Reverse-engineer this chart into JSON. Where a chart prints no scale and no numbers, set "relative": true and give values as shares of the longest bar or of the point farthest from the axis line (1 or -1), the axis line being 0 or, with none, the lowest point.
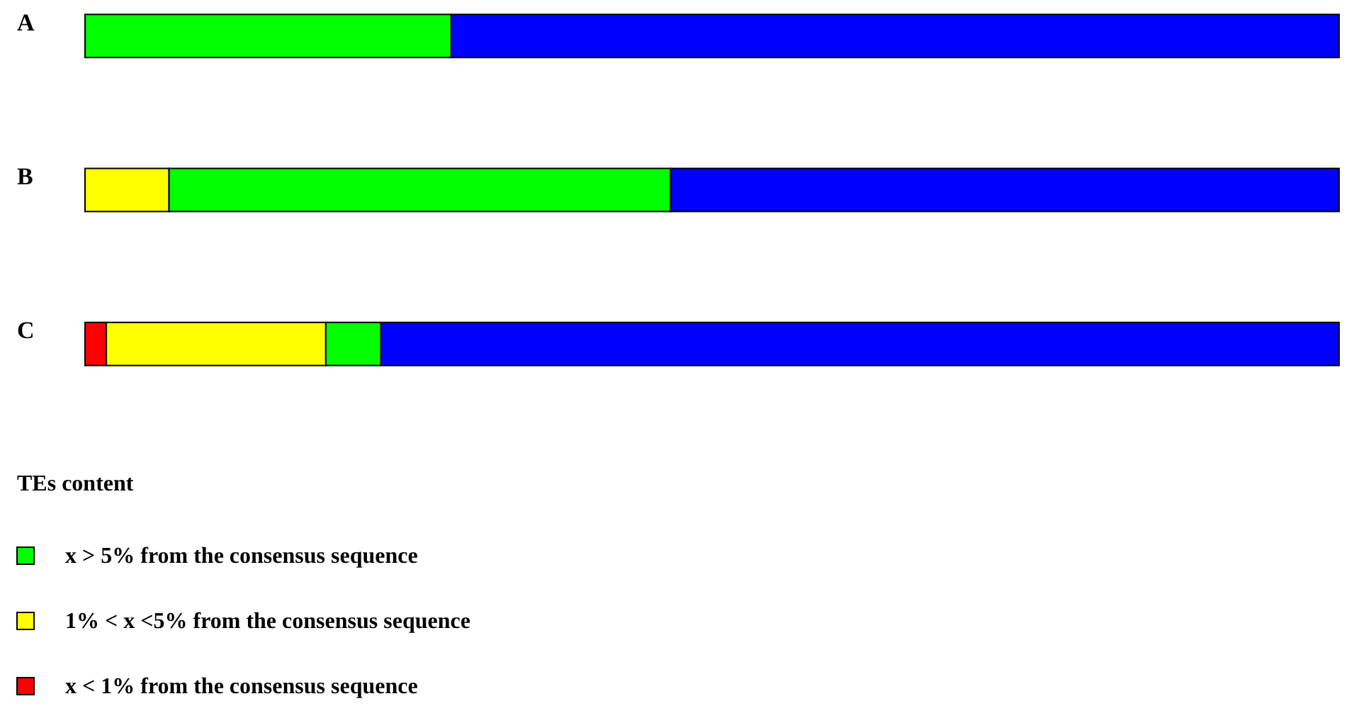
{
  "chart_data": {
    "type": "bar",
    "orientation": "horizontal",
    "stacked": true,
    "relative": true,
    "categories": [
      "A",
      "B",
      "C"
    ],
    "series": [
      {
        "name": "x < 1% from the consensus sequence",
        "color": "#ff0000",
        "values": [
          0,
          0,
          0.017
        ]
      },
      {
        "name": "1% < x <5% from the consensus sequence",
        "color": "#ffff00",
        "values": [
          0,
          0.067,
          0.175
        ]
      },
      {
        "name": "x > 5% from the consensus sequence",
        "color": "#00ff00",
        "values": [
          0.292,
          0.4,
          0.044
        ]
      },
      {
        "color": "#0000ff",
        "values": [
          0.708,
          0.533,
          0.764
        ]
      }
    ],
    "legend_title": "TEs content",
    "legend": "bottom left"
  }
}
